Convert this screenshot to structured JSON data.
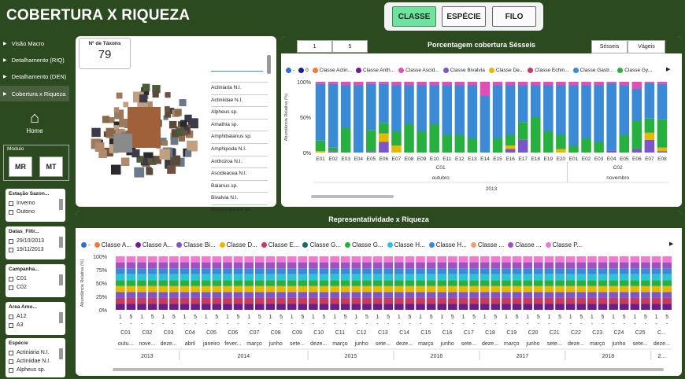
{
  "header": {
    "title": "COBERTURA X RIQUEZA",
    "tabs": [
      {
        "label": "CLASSE",
        "active": true
      },
      {
        "label": "ESPÉCIE",
        "active": false
      },
      {
        "label": "FILO",
        "active": false
      }
    ]
  },
  "sidebar": {
    "nav": [
      {
        "label": "Visão Macro"
      },
      {
        "label": "Detalhamento (RIQ)"
      },
      {
        "label": "Detalhamento (DEN)"
      },
      {
        "label": "Cobertura x Riqueza"
      }
    ],
    "home_label": "Home",
    "module_label": "Módulo",
    "module_buttons": [
      "MR",
      "MT"
    ],
    "slicers": [
      {
        "title": "Estação Sazon...",
        "items": [
          "Inverno",
          "Outono"
        ]
      },
      {
        "title": "Datas_Filtr...",
        "items": [
          "29/10/2013",
          "19/11/2013"
        ]
      },
      {
        "title": "Campanha...",
        "items": [
          "C01",
          "C02"
        ]
      },
      {
        "title": "Área Amo...",
        "items": [
          "A12",
          "A3"
        ]
      },
      {
        "title": "Espécie",
        "items": [
          "Actiniaria N.I.",
          "Actiniidae N.I.",
          "Alpheus sp."
        ]
      }
    ]
  },
  "taxa": {
    "label": "Nº de Táxons",
    "value": "79",
    "species": [
      "Actiniaria N.I.",
      "Actiniidae N.I.",
      "Alpheus sp.",
      "Amathia sp.",
      "Amphibalanus sp.",
      "Amphipoda N.I.",
      "Anthozoa N.I.",
      "Ascideacea N.I.",
      "Balanus sp.",
      "Bivalvia N.I.",
      "Bostrycapulus sp."
    ]
  },
  "chart1": {
    "title": "Porcentagem cobertura Sésseis",
    "page_buttons": [
      "1",
      "5"
    ],
    "toggle": [
      "Sésseis",
      "Vágeis"
    ],
    "legend": [
      {
        "name": "-",
        "color": "#2f6fd6"
      },
      {
        "name": "0",
        "color": "#1a1f8f"
      },
      {
        "name": "Classe Actin...",
        "color": "#f07a3a"
      },
      {
        "name": "Classe Anth...",
        "color": "#6a1e8c"
      },
      {
        "name": "Classe Ascid...",
        "color": "#e04fb5"
      },
      {
        "name": "Classe Bivalvia",
        "color": "#7b55c9"
      },
      {
        "name": "Classe De...",
        "color": "#e6b800"
      },
      {
        "name": "Classe Echin...",
        "color": "#c93a5a"
      },
      {
        "name": "Classe Gastr...",
        "color": "#3a8ad6"
      },
      {
        "name": "Classe Gy...",
        "color": "#27b040"
      }
    ],
    "y_axis_label": "Abundância Relativa (%)",
    "y_ticks": [
      "100%",
      "50%",
      "0%"
    ],
    "year": "2013",
    "months": [
      "outubro",
      "novembro"
    ],
    "campaigns": [
      "C01",
      "C02"
    ]
  },
  "chart2": {
    "title": "Representatividade x Riqueza",
    "legend": [
      {
        "name": "-",
        "color": "#2f6fd6"
      },
      {
        "name": "Classe A...",
        "color": "#f07a3a"
      },
      {
        "name": "Classe A...",
        "color": "#6a1e8c"
      },
      {
        "name": "Classe Bi...",
        "color": "#7b55c9"
      },
      {
        "name": "Classe D...",
        "color": "#e6b800"
      },
      {
        "name": "Classe E...",
        "color": "#c93a5a"
      },
      {
        "name": "Classe G...",
        "color": "#1a6a6a"
      },
      {
        "name": "Classe G...",
        "color": "#27b040"
      },
      {
        "name": "Classe H...",
        "color": "#2bc4d6"
      },
      {
        "name": "Classe H...",
        "color": "#3a8ad6"
      },
      {
        "name": "Classe ...",
        "color": "#f0a070"
      },
      {
        "name": "Classe ...",
        "color": "#a050c0"
      },
      {
        "name": "Classe P...",
        "color": "#f07ad0"
      }
    ],
    "y_axis_label": "Abundância Relativa (%)",
    "y_ticks": [
      "100%",
      "75%",
      "50%",
      "25%",
      "0%"
    ],
    "years": [
      "2013",
      "2014",
      "2015",
      "2016",
      "2017",
      "2018",
      "2..."
    ]
  },
  "chart_data": [
    {
      "type": "bar",
      "title": "Porcentagem cobertura Sésseis",
      "stacked": true,
      "ylabel": "Abundância Relativa (%)",
      "ylim": [
        0,
        100
      ],
      "categories": [
        "E01",
        "E02",
        "E03",
        "E04",
        "E05",
        "E06",
        "E07",
        "E08",
        "E09",
        "E10",
        "E11",
        "E12",
        "E13",
        "E14",
        "E15",
        "E16",
        "E17",
        "E18",
        "E19",
        "E20",
        "E01",
        "E02",
        "E03",
        "E04",
        "E05",
        "E06",
        "E07",
        "E08"
      ],
      "campaign_groups": [
        {
          "label": "C01",
          "count": 20
        },
        {
          "label": "C02",
          "count": 8
        }
      ],
      "series": [
        {
          "name": "Classe Bivalvia",
          "color": "#7b55c9",
          "values": [
            0,
            2,
            0,
            0,
            2,
            15,
            0,
            0,
            0,
            0,
            0,
            0,
            0,
            0,
            0,
            5,
            18,
            0,
            0,
            0,
            0,
            0,
            0,
            3,
            0,
            5,
            18,
            2
          ]
        },
        {
          "name": "Classe De...",
          "color": "#e6b800",
          "values": [
            2,
            0,
            0,
            0,
            0,
            12,
            10,
            0,
            0,
            0,
            0,
            0,
            0,
            0,
            0,
            5,
            0,
            0,
            0,
            5,
            0,
            0,
            0,
            0,
            0,
            0,
            10,
            5
          ]
        },
        {
          "name": "Classe Gy...",
          "color": "#27b040",
          "values": [
            15,
            5,
            35,
            0,
            30,
            15,
            20,
            40,
            30,
            40,
            25,
            25,
            20,
            0,
            20,
            15,
            25,
            50,
            30,
            20,
            10,
            20,
            15,
            0,
            25,
            40,
            20,
            40
          ]
        },
        {
          "name": "Classe Gastr...",
          "color": "#3a8ad6",
          "values": [
            80,
            90,
            60,
            95,
            65,
            55,
            65,
            55,
            65,
            55,
            70,
            70,
            75,
            80,
            75,
            70,
            52,
            45,
            65,
            70,
            85,
            75,
            80,
            95,
            70,
            45,
            50,
            50
          ]
        },
        {
          "name": "Classe Ascid...",
          "color": "#e04fb5",
          "values": [
            3,
            3,
            5,
            5,
            3,
            3,
            5,
            5,
            5,
            5,
            5,
            5,
            5,
            20,
            5,
            5,
            5,
            5,
            5,
            5,
            5,
            5,
            5,
            2,
            5,
            10,
            2,
            3
          ]
        }
      ]
    },
    {
      "type": "bar",
      "title": "Representatividade x Riqueza",
      "stacked": true,
      "ylabel": "Abundância Relativa (%)",
      "ylim": [
        0,
        100
      ],
      "categories": [
        "C01",
        "C02",
        "C03",
        "C04",
        "C05",
        "C06",
        "C07",
        "C08",
        "C09",
        "C10",
        "C11",
        "C12",
        "C13",
        "C14",
        "C15",
        "C16",
        "C17",
        "C18",
        "C19",
        "C20",
        "C21",
        "C22",
        "C23",
        "C24",
        "C25",
        "C..."
      ],
      "value_labels": [
        "1",
        "5"
      ],
      "months": [
        "outu...",
        "nove...",
        "deze...",
        "abril",
        "janeiro",
        "fever...",
        "março",
        "junho",
        "sete...",
        "deze...",
        "março",
        "junho",
        "sete...",
        "deze...",
        "março",
        "junho",
        "sete...",
        "deze...",
        "março",
        "junho",
        "sete...",
        "deze...",
        "março",
        "junho",
        "sete...",
        "deze..."
      ],
      "series": [
        {
          "name": "Classe A...",
          "color": "#6a1e8c",
          "values": [
            11.1,
            11.1,
            11.1,
            11.1,
            11.1,
            11.1,
            11.1,
            11.1,
            11.1,
            11.1,
            11.1,
            11.1,
            11.1,
            11.1,
            11.1,
            11.1,
            11.1,
            11.1,
            11.1,
            11.1,
            11.1,
            11.1,
            11.1,
            11.1,
            11.1,
            11.1
          ]
        },
        {
          "name": "Classe Bi...",
          "color": "#c93a5a",
          "values": [
            11.1,
            11.1,
            11.1,
            11.1,
            11.1,
            11.1,
            11.1,
            11.1,
            11.1,
            11.1,
            11.1,
            11.1,
            11.1,
            11.1,
            11.1,
            11.1,
            11.1,
            11.1,
            11.1,
            11.1,
            11.1,
            11.1,
            11.1,
            11.1,
            11.1,
            11.1
          ]
        },
        {
          "name": "Classe D...",
          "color": "#7b55c9",
          "values": [
            11.1,
            11.1,
            11.1,
            11.1,
            11.1,
            11.1,
            11.1,
            11.1,
            11.1,
            11.1,
            11.1,
            11.1,
            11.1,
            11.1,
            11.1,
            11.1,
            11.1,
            11.1,
            11.1,
            11.1,
            11.1,
            11.1,
            11.1,
            11.1,
            11.1,
            11.1
          ]
        },
        {
          "name": "Classe E...",
          "color": "#e6b800",
          "values": [
            11.1,
            11.1,
            11.1,
            11.1,
            11.1,
            11.1,
            11.1,
            11.1,
            11.1,
            11.1,
            11.1,
            11.1,
            11.1,
            11.1,
            11.1,
            11.1,
            11.1,
            11.1,
            11.1,
            11.1,
            11.1,
            11.1,
            11.1,
            11.1,
            11.1,
            11.1
          ]
        },
        {
          "name": "Classe G...",
          "color": "#27b040",
          "values": [
            11.1,
            11.1,
            11.1,
            11.1,
            11.1,
            11.1,
            11.1,
            11.1,
            11.1,
            11.1,
            11.1,
            11.1,
            11.1,
            11.1,
            11.1,
            11.1,
            11.1,
            11.1,
            11.1,
            11.1,
            11.1,
            11.1,
            11.1,
            11.1,
            11.1,
            11.1
          ]
        },
        {
          "name": "Classe H...",
          "color": "#2bc4d6",
          "values": [
            11.1,
            11.1,
            11.1,
            11.1,
            11.1,
            11.1,
            11.1,
            11.1,
            11.1,
            11.1,
            11.1,
            11.1,
            11.1,
            11.1,
            11.1,
            11.1,
            11.1,
            11.1,
            11.1,
            11.1,
            11.1,
            11.1,
            11.1,
            11.1,
            11.1,
            11.1
          ]
        },
        {
          "name": "Classe H...",
          "color": "#3a8ad6",
          "values": [
            11.1,
            11.1,
            11.1,
            11.1,
            11.1,
            11.1,
            11.1,
            11.1,
            11.1,
            11.1,
            11.1,
            11.1,
            11.1,
            11.1,
            11.1,
            11.1,
            11.1,
            11.1,
            11.1,
            11.1,
            11.1,
            11.1,
            11.1,
            11.1,
            11.1,
            11.1
          ]
        },
        {
          "name": "Classe ...",
          "color": "#a050c0",
          "values": [
            11.1,
            11.1,
            11.1,
            11.1,
            11.1,
            11.1,
            11.1,
            11.1,
            11.1,
            11.1,
            11.1,
            11.1,
            11.1,
            11.1,
            11.1,
            11.1,
            11.1,
            11.1,
            11.1,
            11.1,
            11.1,
            11.1,
            11.1,
            11.1,
            11.1,
            11.1
          ]
        },
        {
          "name": "Classe P...",
          "color": "#f07ad0",
          "values": [
            11.2,
            11.2,
            11.2,
            11.2,
            11.2,
            11.2,
            11.2,
            11.2,
            11.2,
            11.2,
            11.2,
            11.2,
            11.2,
            11.2,
            11.2,
            11.2,
            11.2,
            11.2,
            11.2,
            11.2,
            11.2,
            11.2,
            11.2,
            11.2,
            11.2,
            11.2
          ]
        }
      ]
    }
  ]
}
